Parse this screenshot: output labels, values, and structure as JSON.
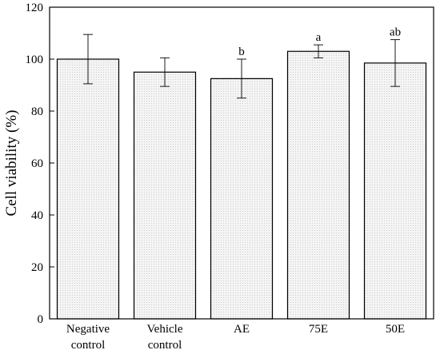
{
  "chart_data": {
    "type": "bar",
    "categories": [
      [
        "Negative",
        "control"
      ],
      [
        "Vehicle",
        "control"
      ],
      [
        "AE"
      ],
      [
        "75E"
      ],
      [
        "50E"
      ]
    ],
    "values": [
      100,
      95,
      92.5,
      103,
      98.5
    ],
    "error": [
      9.5,
      5.5,
      7.5,
      2.5,
      9
    ],
    "annotations": [
      "",
      "",
      "b",
      "a",
      "ab"
    ],
    "ylabel": "Cell viability (%)",
    "ylim": [
      0,
      120
    ],
    "yticks": [
      0,
      20,
      40,
      60,
      80,
      100,
      120
    ],
    "bar_fill": "#f0f0f0",
    "bar_stroke": "#000000",
    "grid": false,
    "legend": "none"
  }
}
